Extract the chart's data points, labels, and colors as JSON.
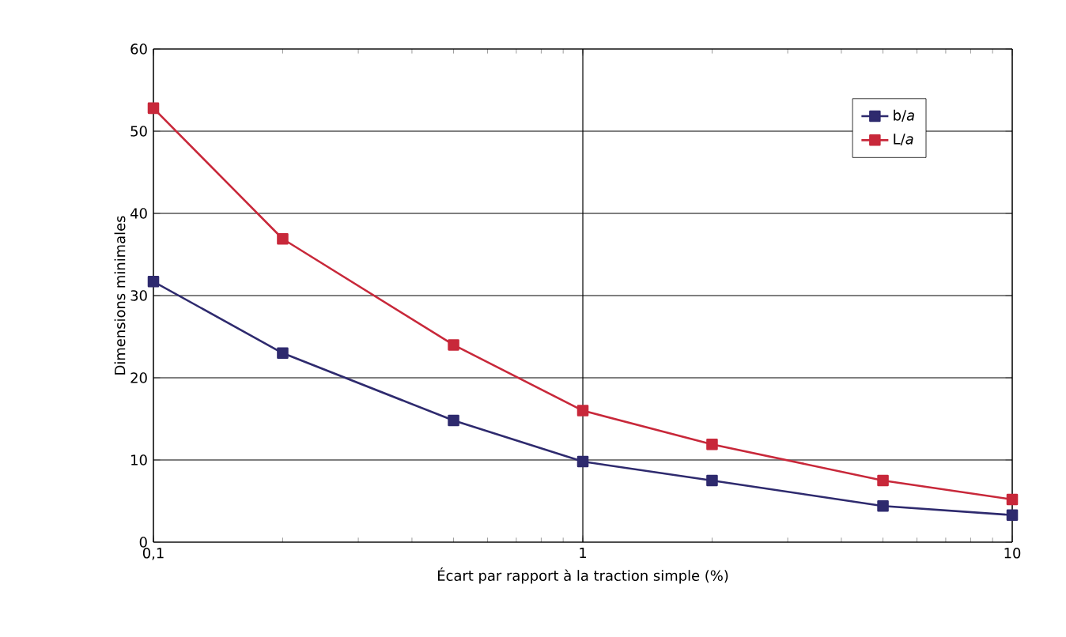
{
  "chart_data": {
    "type": "line",
    "xlabel": "Écart par rapport à la traction simple (%)",
    "ylabel": "Dimensions minimales",
    "x": [
      0.1,
      0.2,
      0.5,
      1,
      2,
      5,
      10
    ],
    "series": [
      {
        "name": "b/*a*",
        "color": "#2e2a6e",
        "values": [
          31.7,
          23,
          14.8,
          9.8,
          7.5,
          4.4,
          3.3
        ]
      },
      {
        "name": "L/*a*",
        "color": "#c8283a",
        "values": [
          52.8,
          36.9,
          24,
          16,
          11.9,
          7.5,
          5.2
        ]
      }
    ],
    "log": "x",
    "xlim": [
      0.1,
      10
    ],
    "xticks": [
      {
        "value": 0.1,
        "label": "0,1"
      },
      1,
      10
    ],
    "ylim": [
      0,
      60
    ],
    "yticks": [
      0,
      10,
      20,
      30,
      40,
      50,
      60
    ],
    "grid": true,
    "legend": "top right",
    "marker": "square",
    "line_style": "solid"
  }
}
